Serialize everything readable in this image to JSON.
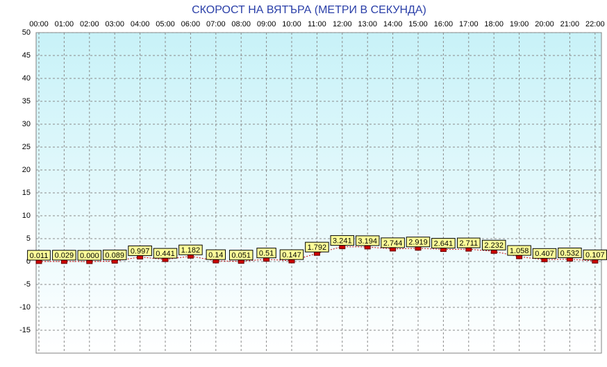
{
  "chart_data": {
    "type": "line",
    "title": "СКОРОСТ НА ВЯТЪРА (МЕТРИ В СЕКУНДА)",
    "categories": [
      "00:00",
      "01:00",
      "02:00",
      "03:00",
      "04:00",
      "05:00",
      "06:00",
      "07:00",
      "08:00",
      "09:00",
      "10:00",
      "11:00",
      "12:00",
      "13:00",
      "14:00",
      "15:00",
      "16:00",
      "17:00",
      "18:00",
      "19:00",
      "20:00",
      "21:00",
      "22:00"
    ],
    "series": [
      {
        "color": "#cc0000",
        "values": [
          0.011,
          0.029,
          0,
          0.089,
          0.997,
          0.441,
          1.182,
          0.14,
          0.051,
          0.51,
          0.147,
          1.792,
          3.241,
          3.194,
          2.744,
          2.919,
          2.641,
          2.711,
          2.232,
          1.058,
          0.407,
          0.532,
          0.107
        ],
        "value_labels": [
          "0.011",
          "0.029",
          "0.000",
          "0.089",
          "0.997",
          "0.441",
          "1.182",
          "0.14",
          "0.051",
          "0.51",
          "0.147",
          "1.792",
          "3.241",
          "3.194",
          "2.744",
          "2.919",
          "2.641",
          "2.711",
          "2.232",
          "1.058",
          "0.407",
          "0.532",
          "0.107"
        ]
      }
    ],
    "ylim": [
      -20,
      50
    ],
    "yticks": [
      -15,
      -10,
      -5,
      0,
      5,
      10,
      15,
      20,
      25,
      30,
      35,
      40,
      45,
      50
    ],
    "grid": true
  }
}
